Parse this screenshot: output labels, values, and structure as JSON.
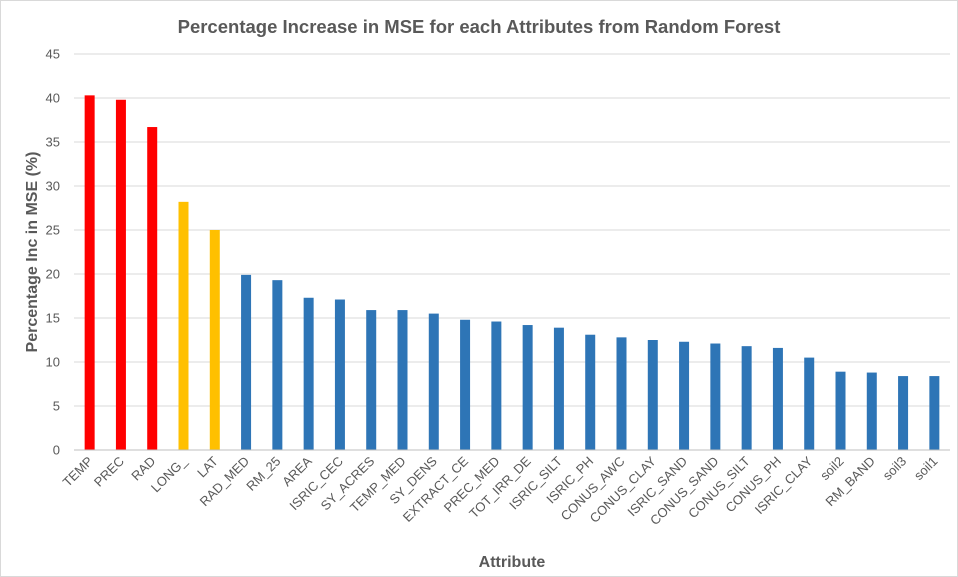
{
  "chart_data": {
    "type": "bar",
    "title": "Percentage Increase in MSE for each Attributes from Random Forest",
    "xlabel": "Attribute",
    "ylabel": "Percentage Inc in MSE (%)",
    "ylim": [
      0,
      45
    ],
    "yticks": [
      "0",
      "5",
      "10",
      "15",
      "20",
      "25",
      "30",
      "35",
      "40",
      "45"
    ],
    "grid": true,
    "legend": "none",
    "categories": [
      "TEMP",
      "PREC",
      "RAD",
      "LONG_",
      "LAT",
      "RAD_MED",
      "RM_25",
      "AREA",
      "ISRIC_CEC",
      "SY_ACRES",
      "TEMP_MED",
      "SY_DENS",
      "EXTRACT_CE",
      "PREC_MED",
      "TOT_IRR_DE",
      "ISRIC_SILT",
      "ISRIC_PH",
      "CONUS_AWC",
      "CONUS_CLAY",
      "ISRIC_SAND",
      "CONUS_SAND",
      "CONUS_SILT",
      "CONUS_PH",
      "ISRIC_CLAY",
      "soil2",
      "RM_BAND",
      "soil3",
      "soil1"
    ],
    "values": [
      40.3,
      39.8,
      36.7,
      28.2,
      25.0,
      19.9,
      19.3,
      17.3,
      17.1,
      15.9,
      15.9,
      15.5,
      14.8,
      14.6,
      14.2,
      13.9,
      13.1,
      12.8,
      12.5,
      12.3,
      12.1,
      11.8,
      11.6,
      10.5,
      8.9,
      8.8,
      8.4,
      8.4
    ],
    "colors": [
      "#ff0000",
      "#ff0000",
      "#ff0000",
      "#ffc000",
      "#ffc000",
      "#2e75b6",
      "#2e75b6",
      "#2e75b6",
      "#2e75b6",
      "#2e75b6",
      "#2e75b6",
      "#2e75b6",
      "#2e75b6",
      "#2e75b6",
      "#2e75b6",
      "#2e75b6",
      "#2e75b6",
      "#2e75b6",
      "#2e75b6",
      "#2e75b6",
      "#2e75b6",
      "#2e75b6",
      "#2e75b6",
      "#2e75b6",
      "#2e75b6",
      "#2e75b6",
      "#2e75b6",
      "#2e75b6"
    ]
  },
  "style": {
    "grid_color": "#d9d9d9",
    "axis_color": "#bfbfbf",
    "text_color": "#595959"
  }
}
